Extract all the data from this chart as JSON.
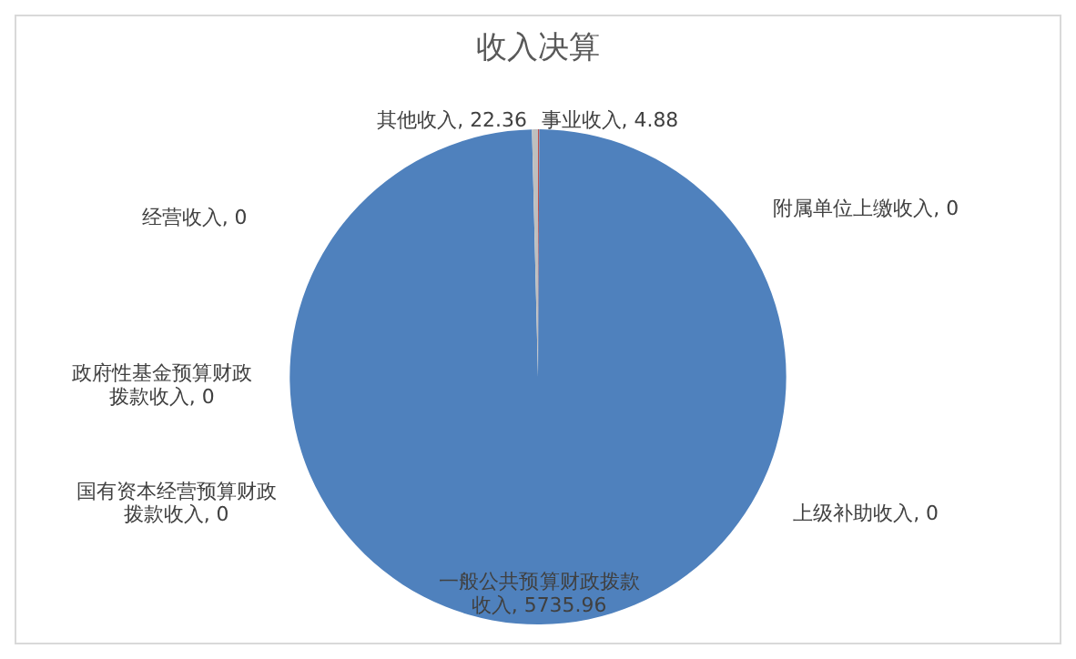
{
  "chart_data": {
    "type": "pie",
    "title": "收入决算",
    "categories": [
      "事业收入, 4.88",
      "一般公共预算财政拨款收入, 5735.96",
      "政府性基金预算财政拨款收入, 0",
      "国有资本经营预算财政拨款收入, 0",
      "上级补助收入, 0",
      "经营收入, 0",
      "附属单位上缴收入, 0",
      "其他收入, 22.36"
    ],
    "values": [
      4.88,
      5735.96,
      0,
      0,
      0,
      0,
      0,
      22.36
    ],
    "colors": [
      "#c0504d",
      "#4f81bd",
      "#9bbb59",
      "#8064a2",
      "#4bacc6",
      "#f79646",
      "#2c4d75",
      "#bfbfbf"
    ],
    "legend": false
  }
}
